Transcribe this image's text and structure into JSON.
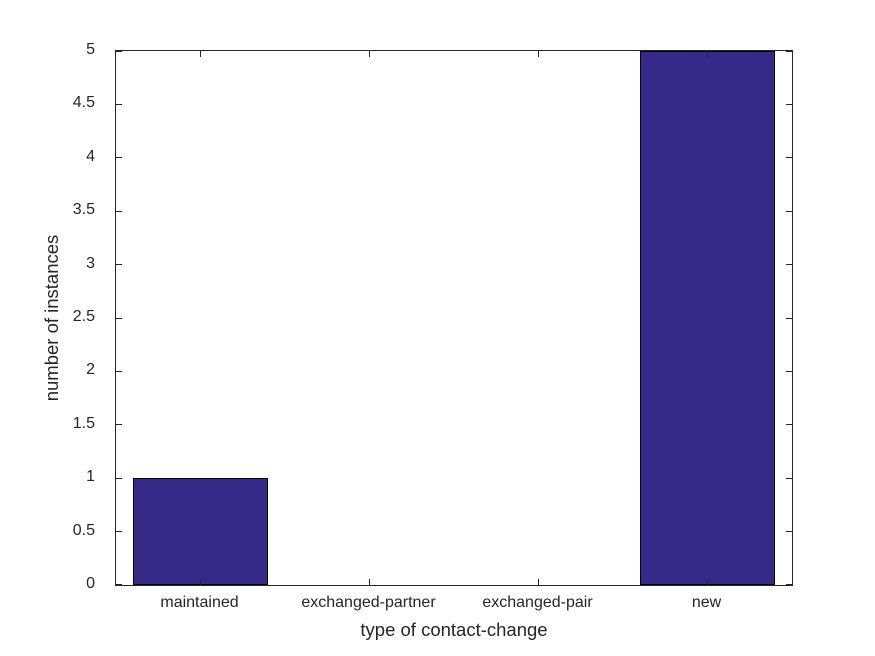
{
  "chart_data": {
    "type": "bar",
    "categories": [
      "maintained",
      "exchanged-partner",
      "exchanged-pair",
      "new"
    ],
    "values": [
      1,
      0,
      0,
      5
    ],
    "title": "",
    "xlabel": "type of contact-change",
    "ylabel": "number of instances",
    "ylim": [
      0,
      5
    ],
    "y_ticks": [
      0,
      0.5,
      1,
      1.5,
      2,
      2.5,
      3,
      3.5,
      4,
      4.5,
      5
    ],
    "bar_width_fraction": 0.8,
    "grid": false,
    "legend_position": "none",
    "colors": {
      "bar_fill": "#352A87",
      "bar_edge": "#000000",
      "axis": "#262626",
      "text": "#262626",
      "background": "#FFFFFF"
    }
  }
}
